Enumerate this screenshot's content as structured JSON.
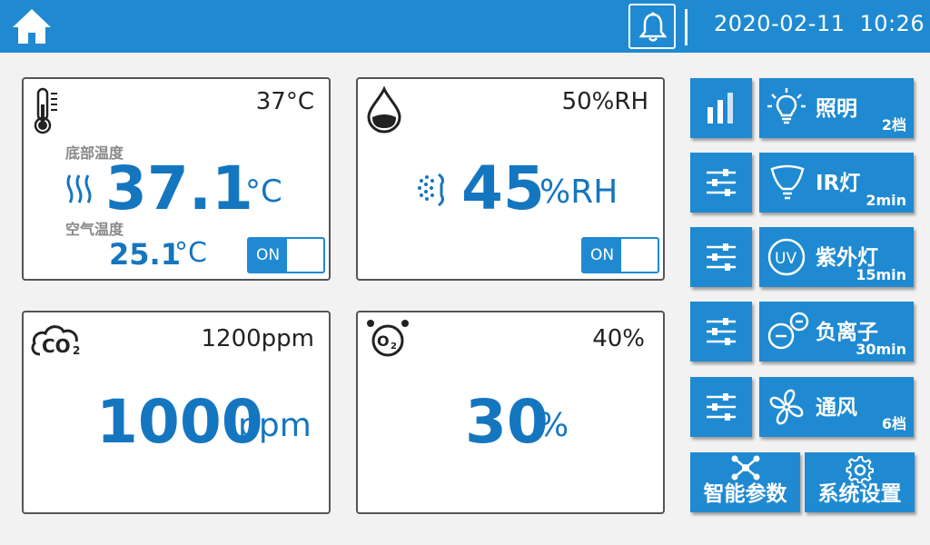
{
  "header": {
    "date": "2020-02-11",
    "time": "10:26"
  },
  "cards": {
    "temperature": {
      "setpoint": "37°C",
      "bottom_label": "底部温度",
      "bottom_value": "37.1",
      "bottom_unit": "°C",
      "air_label": "空气温度",
      "air_value": "25.1",
      "air_unit": "°C",
      "toggle": "ON"
    },
    "humidity": {
      "setpoint": "50%RH",
      "value": "45",
      "unit": "%RH",
      "toggle": "ON"
    },
    "co2": {
      "setpoint": "1200ppm",
      "value": "1000",
      "unit": "ppm",
      "icon_text": "CO₂"
    },
    "o2": {
      "setpoint": "40%",
      "value": "30",
      "unit": "%",
      "icon_text": "O₂"
    }
  },
  "controls": [
    {
      "label": "照明",
      "sub": "2档"
    },
    {
      "label": "IR灯",
      "sub": "2min"
    },
    {
      "label": "紫外灯",
      "sub": "15min",
      "icon_text": "UV"
    },
    {
      "label": "负离子",
      "sub": "30min"
    },
    {
      "label": "通风",
      "sub": "6档"
    }
  ],
  "bottom_buttons": {
    "smart_params": "智能参数",
    "system_settings": "系统设置"
  },
  "colors": {
    "accent": "#1f8ad1",
    "value_blue": "#1576c0",
    "background": "#f2f2f2"
  }
}
